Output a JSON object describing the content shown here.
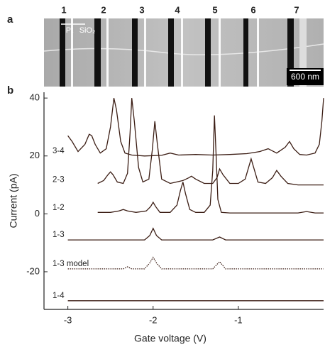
{
  "image_panel": {
    "label": "a",
    "electrode_labels": [
      "1",
      "2",
      "3",
      "4",
      "5",
      "6",
      "7"
    ],
    "material_labels": [
      "Pt",
      "SiO₂"
    ],
    "scale_bar": "600 nm"
  },
  "chart_data": {
    "type": "line",
    "panel_label": "b",
    "x_label": "Gate voltage  (V)",
    "y_label": "Current  (pA)",
    "xlim": [
      -3.28,
      0
    ],
    "xticks": [
      -3,
      -2,
      -1
    ],
    "ylim": [
      -33,
      42
    ],
    "yticks": [
      40,
      20,
      0,
      -20
    ],
    "series": [
      {
        "name": "3-4",
        "color": "#3b1d14",
        "dash": false,
        "x": [
          -3,
          -2.95,
          -2.88,
          -2.8,
          -2.75,
          -2.72,
          -2.68,
          -2.62,
          -2.55,
          -2.5,
          -2.46,
          -2.43,
          -2.38,
          -2.33,
          -2.25,
          -2.1,
          -1.9,
          -1.8,
          -1.7,
          -1.5,
          -1.3,
          -1.1,
          -0.9,
          -0.75,
          -0.65,
          -0.55,
          -0.45,
          -0.4,
          -0.35,
          -0.28,
          -0.2,
          -0.1,
          -0.05,
          -0.02,
          0
        ],
        "values": [
          27,
          25,
          21.5,
          24,
          27.5,
          27,
          24,
          21,
          22.5,
          30,
          40,
          36,
          25,
          21,
          20.3,
          20,
          20.2,
          21,
          20.3,
          20.5,
          20.3,
          20.5,
          20.8,
          21.5,
          22.5,
          21,
          23,
          25,
          22.5,
          20.5,
          20.3,
          21,
          24,
          32,
          40
        ]
      },
      {
        "name": "2-3",
        "color": "#3b1d14",
        "dash": false,
        "x": [
          -2.65,
          -2.58,
          -2.53,
          -2.5,
          -2.47,
          -2.42,
          -2.35,
          -2.3,
          -2.27,
          -2.25,
          -2.22,
          -2.17,
          -2.12,
          -2.05,
          -2.01,
          -1.98,
          -1.95,
          -1.9,
          -1.8,
          -1.65,
          -1.58,
          -1.55,
          -1.5,
          -1.4,
          -1.3,
          -1.25,
          -1.22,
          -1.18,
          -1.1,
          -1,
          -0.92,
          -0.88,
          -0.85,
          -0.82,
          -0.77,
          -0.68,
          -0.6,
          -0.55,
          -0.5,
          -0.42,
          -0.3,
          -0.1,
          0
        ],
        "values": [
          10.5,
          11.5,
          13.5,
          14.5,
          13.5,
          11,
          10.5,
          14,
          28,
          40,
          32,
          16,
          11,
          12,
          22,
          32,
          24,
          12,
          10.5,
          11.5,
          12.5,
          13,
          12,
          10.5,
          10.5,
          12.5,
          15.5,
          13.5,
          10.5,
          10.5,
          12,
          16,
          19,
          16,
          11,
          10.5,
          12.5,
          15,
          13,
          10.5,
          10,
          10,
          10
        ]
      },
      {
        "name": "1-2",
        "color": "#3b1d14",
        "dash": false,
        "x": [
          -2.65,
          -2.5,
          -2.4,
          -2.35,
          -2.3,
          -2.2,
          -2.08,
          -2.03,
          -2,
          -1.97,
          -1.92,
          -1.8,
          -1.72,
          -1.68,
          -1.65,
          -1.62,
          -1.57,
          -1.5,
          -1.4,
          -1.33,
          -1.3,
          -1.28,
          -1.26,
          -1.24,
          -1.2,
          -1.1,
          -0.8,
          -0.5,
          -0.3,
          -0.2,
          -0.1,
          0
        ],
        "values": [
          0.5,
          0.5,
          1,
          1.5,
          1,
          0.5,
          1,
          2.5,
          4,
          2.5,
          0.5,
          0.5,
          3,
          8,
          11,
          7,
          1.5,
          0.5,
          0.5,
          3,
          15,
          34,
          20,
          5,
          0.5,
          0.3,
          0.3,
          0.3,
          0.3,
          0.8,
          0.3,
          0.3
        ]
      },
      {
        "name": "1-3",
        "color": "#3b1d14",
        "dash": false,
        "x": [
          -3,
          -2.5,
          -2.1,
          -2.04,
          -2,
          -1.96,
          -1.9,
          -1.6,
          -1.3,
          -1.22,
          -1.15,
          -0.8,
          -0.3,
          0
        ],
        "values": [
          -9,
          -9,
          -9,
          -7.5,
          -5,
          -7.5,
          -9,
          -9,
          -9,
          -8,
          -9,
          -9,
          -9,
          -9
        ]
      },
      {
        "name": "1-3 model",
        "color": "#3b1d14",
        "dash": true,
        "x": [
          -3,
          -2.6,
          -2.35,
          -2.3,
          -2.25,
          -2.1,
          -2.04,
          -2,
          -1.96,
          -1.9,
          -1.6,
          -1.3,
          -1.22,
          -1.15,
          -0.8,
          -0.3,
          0
        ],
        "values": [
          -19,
          -19,
          -19,
          -18.3,
          -19,
          -19,
          -17,
          -15,
          -17,
          -19,
          -19,
          -19,
          -16.5,
          -19,
          -19,
          -19,
          -19
        ]
      },
      {
        "name": "1-4",
        "color": "#3b1d14",
        "dash": false,
        "x": [
          -3,
          -2,
          -1,
          0
        ],
        "values": [
          -30,
          -30,
          -30,
          -30
        ]
      }
    ]
  }
}
